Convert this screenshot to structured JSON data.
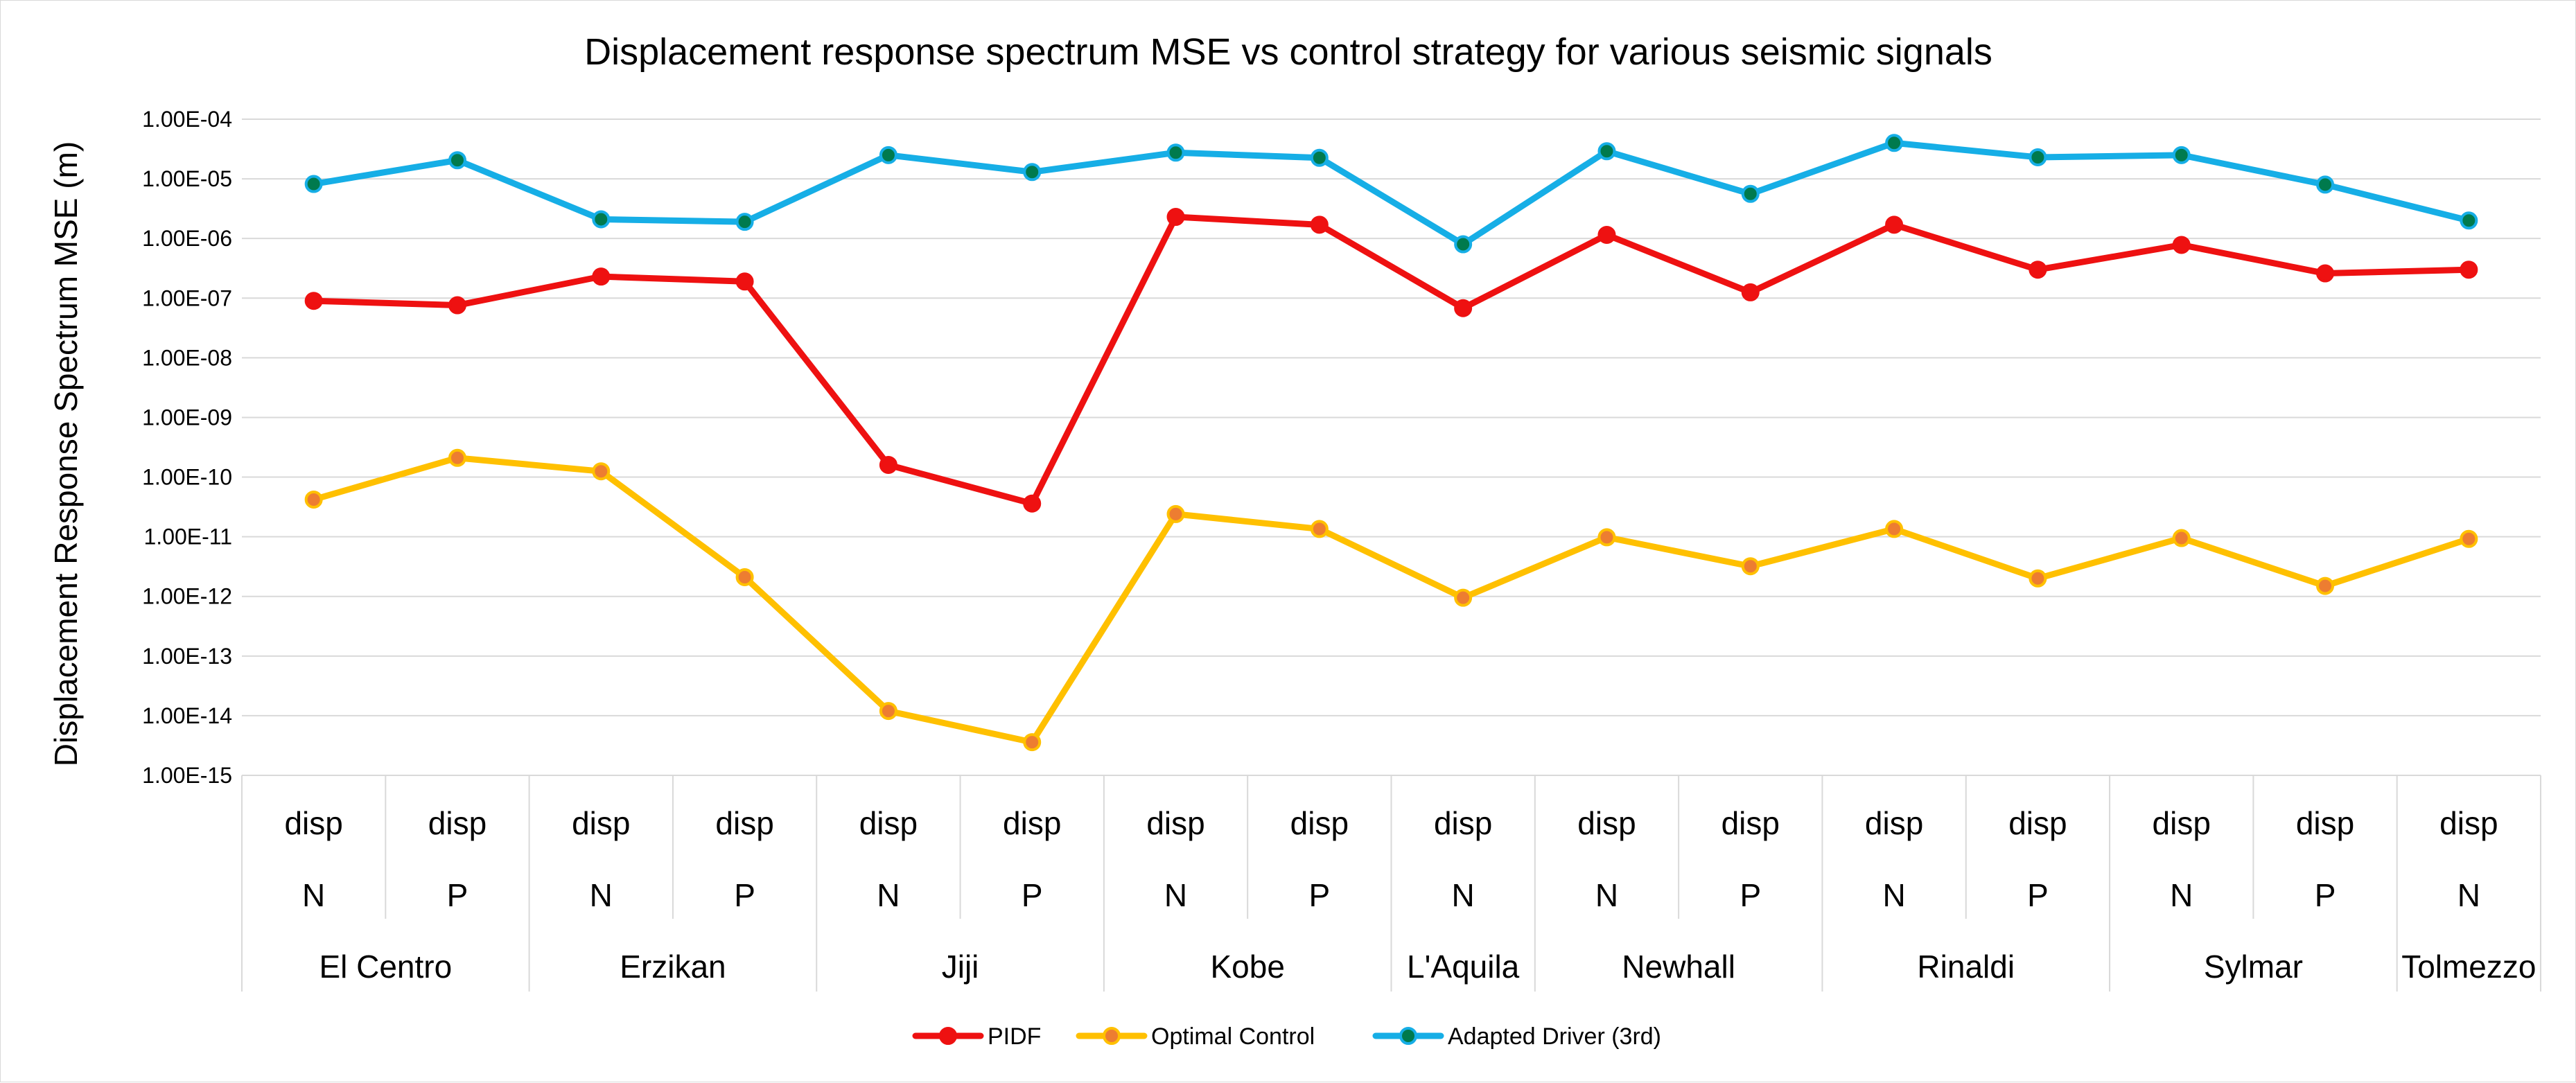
{
  "chart_data": {
    "type": "line",
    "title": "Displacement response spectrum MSE vs control strategy for various seismic signals",
    "ylabel": "Displacement Response Spectrum MSE (m)",
    "yscale": "log",
    "ylim": [
      1e-15,
      0.0001
    ],
    "yticks": [
      "1.00E-04",
      "1.00E-05",
      "1.00E-06",
      "1.00E-07",
      "1.00E-08",
      "1.00E-09",
      "1.00E-10",
      "1.00E-11",
      "1.00E-12",
      "1.00E-13",
      "1.00E-14",
      "1.00E-15"
    ],
    "grid": true,
    "legend_position": "bottom",
    "categories": [
      {
        "level1": "disp",
        "level2": "N",
        "signal": "El Centro"
      },
      {
        "level1": "disp",
        "level2": "P",
        "signal": "El Centro"
      },
      {
        "level1": "disp",
        "level2": "N",
        "signal": "Erzikan"
      },
      {
        "level1": "disp",
        "level2": "P",
        "signal": "Erzikan"
      },
      {
        "level1": "disp",
        "level2": "N",
        "signal": "Jiji"
      },
      {
        "level1": "disp",
        "level2": "P",
        "signal": "Jiji"
      },
      {
        "level1": "disp",
        "level2": "N",
        "signal": "Kobe"
      },
      {
        "level1": "disp",
        "level2": "P",
        "signal": "Kobe"
      },
      {
        "level1": "disp",
        "level2": "N",
        "signal": "L'Aquila"
      },
      {
        "level1": "disp",
        "level2": "N",
        "signal": "Newhall"
      },
      {
        "level1": "disp",
        "level2": "P",
        "signal": "Newhall"
      },
      {
        "level1": "disp",
        "level2": "N",
        "signal": "Rinaldi"
      },
      {
        "level1": "disp",
        "level2": "P",
        "signal": "Rinaldi"
      },
      {
        "level1": "disp",
        "level2": "N",
        "signal": "Sylmar"
      },
      {
        "level1": "disp",
        "level2": "P",
        "signal": "Sylmar"
      },
      {
        "level1": "disp",
        "level2": "N",
        "signal": "Tolmezzo"
      }
    ],
    "groups": [
      {
        "name": "El Centro",
        "count": 2
      },
      {
        "name": "Erzikan",
        "count": 2
      },
      {
        "name": "Jiji",
        "count": 2
      },
      {
        "name": "Kobe",
        "count": 2
      },
      {
        "name": "L'Aquila",
        "count": 1
      },
      {
        "name": "Newhall",
        "count": 2
      },
      {
        "name": "Rinaldi",
        "count": 2
      },
      {
        "name": "Sylmar",
        "count": 2
      },
      {
        "name": "Tolmezzo",
        "count": 1
      }
    ],
    "series": [
      {
        "name": "PIDF",
        "color": "#ee1111",
        "marker_color": "#ee1111",
        "values": [
          9e-08,
          7.6e-08,
          2.3e-07,
          1.9e-07,
          1.6e-10,
          3.6e-11,
          2.3e-06,
          1.7e-06,
          6.8e-08,
          1.15e-06,
          1.25e-07,
          1.7e-06,
          3e-07,
          7.8e-07,
          2.6e-07,
          3e-07
        ]
      },
      {
        "name": "Optimal Control",
        "color": "#ffc000",
        "marker_color": "#ed7d31",
        "values": [
          4.2e-11,
          2.1e-10,
          1.25e-10,
          2.1e-12,
          1.2e-14,
          3.6e-15,
          2.4e-11,
          1.35e-11,
          9.5e-13,
          9.8e-12,
          3.2e-12,
          1.35e-11,
          2e-12,
          9.5e-12,
          1.5e-12,
          9.2e-12
        ]
      },
      {
        "name": "Adapted Driver (3rd)",
        "color": "#16aee6",
        "marker_color": "#007a4d",
        "values": [
          8.2e-06,
          2.05e-05,
          2.1e-06,
          1.9e-06,
          2.5e-05,
          1.3e-05,
          2.75e-05,
          2.25e-05,
          8e-07,
          2.9e-05,
          5.6e-06,
          4e-05,
          2.3e-05,
          2.5e-05,
          8e-06,
          2e-06
        ]
      }
    ]
  }
}
